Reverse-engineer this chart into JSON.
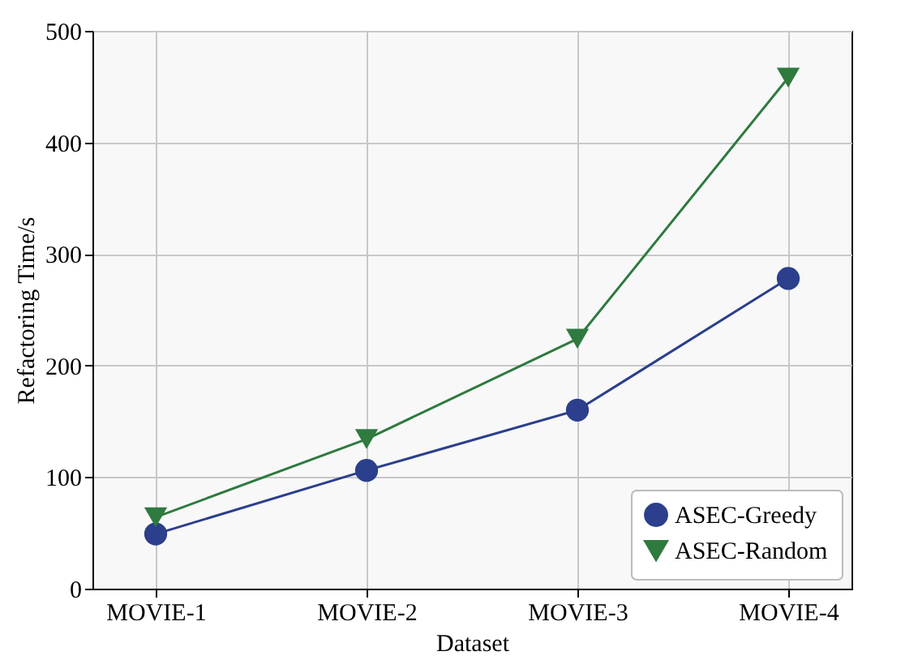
{
  "chart_data": {
    "type": "line",
    "xlabel": "Dataset",
    "ylabel": "Refactoring Time/s",
    "categories": [
      "MOVIE-1",
      "MOVIE-2",
      "MOVIE-3",
      "MOVIE-4"
    ],
    "series": [
      {
        "name": "ASEC-Greedy",
        "color": "#2b3f8c",
        "marker": "circle",
        "values": [
          49,
          106,
          160,
          278
        ]
      },
      {
        "name": "ASEC-Random",
        "color": "#2e7a3f",
        "marker": "triangle",
        "values": [
          64,
          134,
          224,
          458
        ]
      }
    ],
    "ylim": [
      0,
      500
    ],
    "yticks": [
      0,
      100,
      200,
      300,
      400,
      500
    ],
    "grid": true,
    "legend": "bottom right",
    "line_style": "solid"
  }
}
